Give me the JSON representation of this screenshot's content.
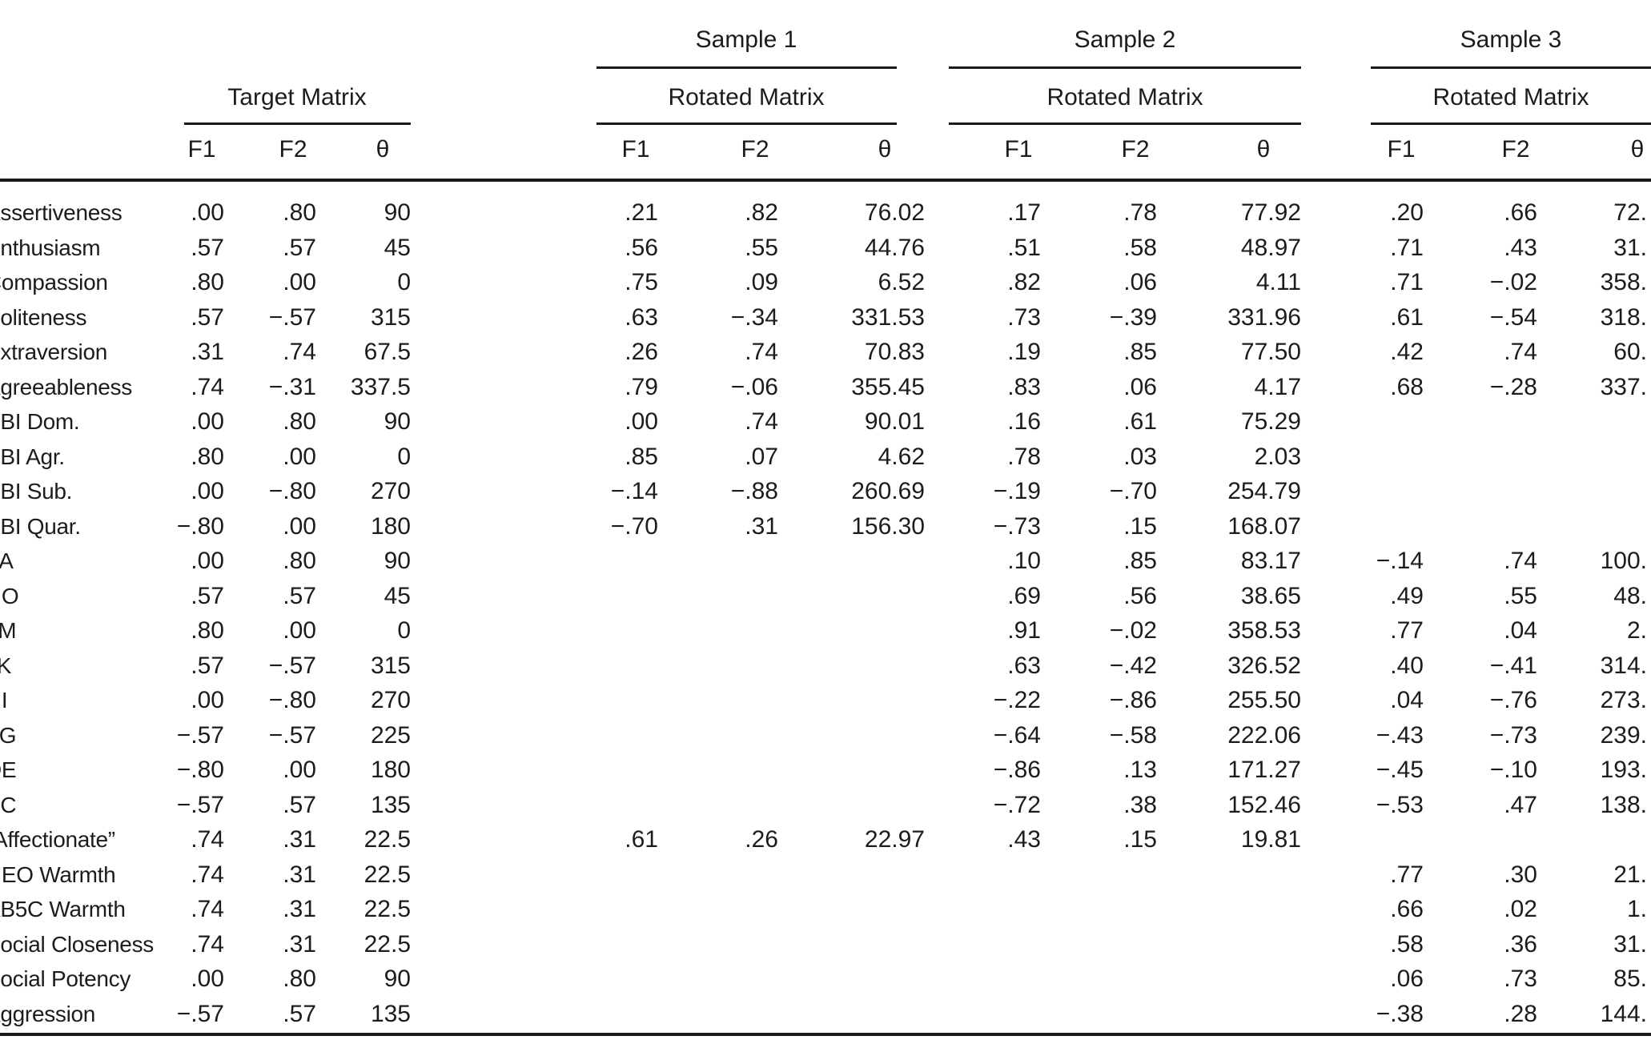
{
  "table": {
    "groups": [
      {
        "sample": "",
        "matrix": "Target Matrix"
      },
      {
        "sample": "Sample 1",
        "matrix": "Rotated Matrix"
      },
      {
        "sample": "Sample 2",
        "matrix": "Rotated Matrix"
      },
      {
        "sample": "Sample 3",
        "matrix": "Rotated Matrix"
      }
    ],
    "sub_headers": [
      "F1",
      "F2",
      "θ"
    ],
    "rows": [
      {
        "label": "Assertiveness",
        "target": [
          ".00",
          ".80",
          "90"
        ],
        "sample1": [
          ".21",
          ".82",
          "76.02"
        ],
        "sample2": [
          ".17",
          ".78",
          "77.92"
        ],
        "sample3": [
          ".20",
          ".66",
          "72."
        ]
      },
      {
        "label": "Enthusiasm",
        "target": [
          ".57",
          ".57",
          "45"
        ],
        "sample1": [
          ".56",
          ".55",
          "44.76"
        ],
        "sample2": [
          ".51",
          ".58",
          "48.97"
        ],
        "sample3": [
          ".71",
          ".43",
          "31."
        ]
      },
      {
        "label": "Compassion",
        "target": [
          ".80",
          ".00",
          "0"
        ],
        "sample1": [
          ".75",
          ".09",
          "6.52"
        ],
        "sample2": [
          ".82",
          ".06",
          "4.11"
        ],
        "sample3": [
          ".71",
          "−.02",
          "358."
        ]
      },
      {
        "label": "Politeness",
        "target": [
          ".57",
          "−.57",
          "315"
        ],
        "sample1": [
          ".63",
          "−.34",
          "331.53"
        ],
        "sample2": [
          ".73",
          "−.39",
          "331.96"
        ],
        "sample3": [
          ".61",
          "−.54",
          "318."
        ]
      },
      {
        "label": "Extraversion",
        "target": [
          ".31",
          ".74",
          "67.5"
        ],
        "sample1": [
          ".26",
          ".74",
          "70.83"
        ],
        "sample2": [
          ".19",
          ".85",
          "77.50"
        ],
        "sample3": [
          ".42",
          ".74",
          "60."
        ]
      },
      {
        "label": "Agreeableness",
        "target": [
          ".74",
          "−.31",
          "337.5"
        ],
        "sample1": [
          ".79",
          "−.06",
          "355.45"
        ],
        "sample2": [
          ".83",
          ".06",
          "4.17"
        ],
        "sample3": [
          ".68",
          "−.28",
          "337."
        ]
      },
      {
        "label": "SBI Dom.",
        "target": [
          ".00",
          ".80",
          "90"
        ],
        "sample1": [
          ".00",
          ".74",
          "90.01"
        ],
        "sample2": [
          ".16",
          ".61",
          "75.29"
        ],
        "sample3": [
          "",
          "",
          ""
        ]
      },
      {
        "label": "SBI Agr.",
        "target": [
          ".80",
          ".00",
          "0"
        ],
        "sample1": [
          ".85",
          ".07",
          "4.62"
        ],
        "sample2": [
          ".78",
          ".03",
          "2.03"
        ],
        "sample3": [
          "",
          "",
          ""
        ]
      },
      {
        "label": "SBI Sub.",
        "target": [
          ".00",
          "−.80",
          "270"
        ],
        "sample1": [
          "−.14",
          "−.88",
          "260.69"
        ],
        "sample2": [
          "−.19",
          "−.70",
          "254.79"
        ],
        "sample3": [
          "",
          "",
          ""
        ]
      },
      {
        "label": "SBI Quar.",
        "target": [
          "−.80",
          ".00",
          "180"
        ],
        "sample1": [
          "−.70",
          ".31",
          "156.30"
        ],
        "sample2": [
          "−.73",
          ".15",
          "168.07"
        ],
        "sample3": [
          "",
          "",
          ""
        ]
      },
      {
        "label": "PA",
        "target": [
          ".00",
          ".80",
          "90"
        ],
        "sample1": [
          "",
          "",
          ""
        ],
        "sample2": [
          ".10",
          ".85",
          "83.17"
        ],
        "sample3": [
          "−.14",
          ".74",
          "100."
        ]
      },
      {
        "label": "NO",
        "target": [
          ".57",
          ".57",
          "45"
        ],
        "sample1": [
          "",
          "",
          ""
        ],
        "sample2": [
          ".69",
          ".56",
          "38.65"
        ],
        "sample3": [
          ".49",
          ".55",
          "48."
        ]
      },
      {
        "label": "LM",
        "target": [
          ".80",
          ".00",
          "0"
        ],
        "sample1": [
          "",
          "",
          ""
        ],
        "sample2": [
          ".91",
          "−.02",
          "358.53"
        ],
        "sample3": [
          ".77",
          ".04",
          "2."
        ]
      },
      {
        "label": "JK",
        "target": [
          ".57",
          "−.57",
          "315"
        ],
        "sample1": [
          "",
          "",
          ""
        ],
        "sample2": [
          ".63",
          "−.42",
          "326.52"
        ],
        "sample3": [
          ".40",
          "−.41",
          "314."
        ]
      },
      {
        "label": "HI",
        "target": [
          ".00",
          "−.80",
          "270"
        ],
        "sample1": [
          "",
          "",
          ""
        ],
        "sample2": [
          "−.22",
          "−.86",
          "255.50"
        ],
        "sample3": [
          ".04",
          "−.76",
          "273."
        ]
      },
      {
        "label": "FG",
        "target": [
          "−.57",
          "−.57",
          "225"
        ],
        "sample1": [
          "",
          "",
          ""
        ],
        "sample2": [
          "−.64",
          "−.58",
          "222.06"
        ],
        "sample3": [
          "−.43",
          "−.73",
          "239."
        ]
      },
      {
        "label": "DE",
        "target": [
          "−.80",
          ".00",
          "180"
        ],
        "sample1": [
          "",
          "",
          ""
        ],
        "sample2": [
          "−.86",
          ".13",
          "171.27"
        ],
        "sample3": [
          "−.45",
          "−.10",
          "193."
        ]
      },
      {
        "label": "BC",
        "target": [
          "−.57",
          ".57",
          "135"
        ],
        "sample1": [
          "",
          "",
          ""
        ],
        "sample2": [
          "−.72",
          ".38",
          "152.46"
        ],
        "sample3": [
          "−.53",
          ".47",
          "138."
        ]
      },
      {
        "label": "“Affectionate”",
        "target": [
          ".74",
          ".31",
          "22.5"
        ],
        "sample1": [
          ".61",
          ".26",
          "22.97"
        ],
        "sample2": [
          ".43",
          ".15",
          "19.81"
        ],
        "sample3": [
          "",
          "",
          ""
        ]
      },
      {
        "label": "NEO Warmth",
        "target": [
          ".74",
          ".31",
          "22.5"
        ],
        "sample1": [
          "",
          "",
          ""
        ],
        "sample2": [
          "",
          "",
          ""
        ],
        "sample3": [
          ".77",
          ".30",
          "21."
        ]
      },
      {
        "label": "AB5C Warmth",
        "target": [
          ".74",
          ".31",
          "22.5"
        ],
        "sample1": [
          "",
          "",
          ""
        ],
        "sample2": [
          "",
          "",
          ""
        ],
        "sample3": [
          ".66",
          ".02",
          "1."
        ]
      },
      {
        "label": "Social Closeness",
        "target": [
          ".74",
          ".31",
          "22.5"
        ],
        "sample1": [
          "",
          "",
          ""
        ],
        "sample2": [
          "",
          "",
          ""
        ],
        "sample3": [
          ".58",
          ".36",
          "31."
        ]
      },
      {
        "label": "Social Potency",
        "target": [
          ".00",
          ".80",
          "90"
        ],
        "sample1": [
          "",
          "",
          ""
        ],
        "sample2": [
          "",
          "",
          ""
        ],
        "sample3": [
          ".06",
          ".73",
          "85."
        ]
      },
      {
        "label": "Aggression",
        "target": [
          "−.57",
          ".57",
          "135"
        ],
        "sample1": [
          "",
          "",
          ""
        ],
        "sample2": [
          "",
          "",
          ""
        ],
        "sample3": [
          "−.38",
          ".28",
          "144."
        ]
      }
    ]
  },
  "colors": {
    "text": "#1c1c1c",
    "rule": "#1a1a1a",
    "background": "#ffffff"
  }
}
